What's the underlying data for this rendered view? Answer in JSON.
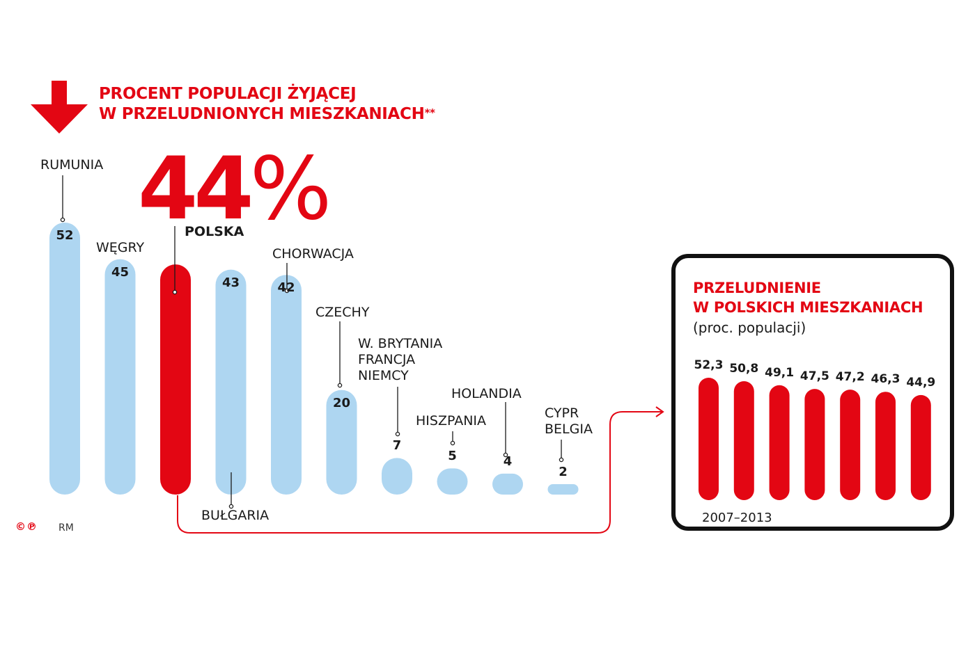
{
  "chart_data": [
    {
      "type": "bar",
      "title": "PROCENT POPULACJI ŻYJĄCEJ W PRZELUDNIONYCH MIESZKANIACH**",
      "title_lines": [
        "PROCENT POPULACJI ŻYJĄCEJ",
        "W PRZELUDNIONYCH MIESZKANIACH"
      ],
      "title_mark": "**",
      "highlight": {
        "value": "44",
        "unit": "%",
        "label": "POLSKA"
      },
      "bars": [
        {
          "labels": [
            "RUMUNIA"
          ],
          "value": 52,
          "display": "52",
          "color": "#aed6f1"
        },
        {
          "labels": [
            "WĘGRY"
          ],
          "value": 45,
          "display": "45",
          "color": "#aed6f1"
        },
        {
          "labels": [
            "POLSKA"
          ],
          "value": 44,
          "display": "",
          "color": "#e30613"
        },
        {
          "labels": [
            "BUŁGARIA"
          ],
          "value": 43,
          "display": "43",
          "color": "#aed6f1"
        },
        {
          "labels": [
            "CHORWACJA"
          ],
          "value": 42,
          "display": "42",
          "color": "#aed6f1"
        },
        {
          "labels": [
            "CZECHY"
          ],
          "value": 20,
          "display": "20",
          "color": "#aed6f1"
        },
        {
          "labels": [
            "W. BRYTANIA",
            "FRANCJA",
            "NIEMCY"
          ],
          "value": 7,
          "display": "7",
          "color": "#aed6f1"
        },
        {
          "labels": [
            "HISZPANIA"
          ],
          "value": 5,
          "display": "5",
          "color": "#aed6f1"
        },
        {
          "labels": [
            "HOLANDIA"
          ],
          "value": 4,
          "display": "4",
          "color": "#aed6f1"
        },
        {
          "labels": [
            "CYPR",
            "BELGIA"
          ],
          "value": 2,
          "display": "2",
          "color": "#aed6f1"
        }
      ],
      "ylim": [
        0,
        52
      ]
    },
    {
      "type": "bar",
      "title_lines": [
        "PRZELUDNIENIE",
        "W POLSKICH MIESZKANIACH"
      ],
      "subtitle": "(proc. populacji)",
      "period": "2007–2013",
      "values": [
        52.3,
        50.8,
        49.1,
        47.5,
        47.2,
        46.3,
        44.9
      ],
      "display": [
        "52,3",
        "50,8",
        "49,1",
        "47,5",
        "47,2",
        "46,3",
        "44,9"
      ],
      "color": "#e30613"
    }
  ],
  "footer": {
    "copyright": "©℗",
    "author": "RM"
  },
  "icons": {
    "header": "arrow-down-icon"
  },
  "colors": {
    "accent": "#e30613",
    "bar": "#aed6f1",
    "text": "#1a1a1a"
  }
}
